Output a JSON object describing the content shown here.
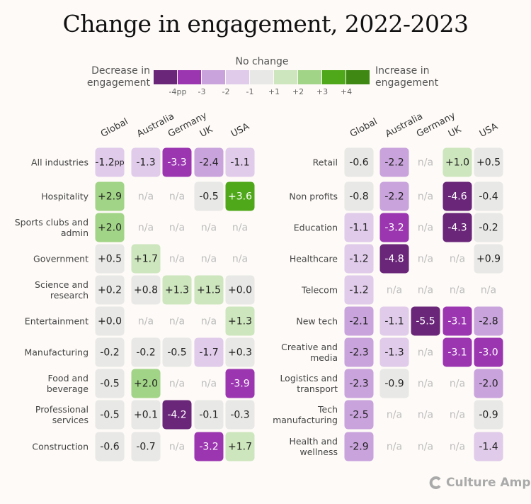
{
  "title": "Change in engagement, 2022-2023",
  "legend": {
    "no_change": "No change",
    "decrease": "Decrease in engagement",
    "increase": "Increase in engagement",
    "ticks": [
      "-4pp",
      "-3",
      "-2",
      "-1",
      "+1",
      "+2",
      "+3",
      "+4"
    ],
    "colors": [
      "#6a2679",
      "#9b36b0",
      "#c9a3dc",
      "#e0cbea",
      "#e8e8e6",
      "#cde6bd",
      "#a1d486",
      "#4fa819",
      "#3e8813"
    ]
  },
  "brand": "Culture Amp",
  "chart_data": [
    {
      "type": "heatmap",
      "unit": "pp",
      "columns": [
        "Global",
        "Australia",
        "Germany",
        "UK",
        "USA"
      ],
      "rows": [
        "All industries",
        "Hospitality",
        "Sports clubs and admin",
        "Government",
        "Science and research",
        "Entertainment",
        "Manufacturing",
        "Food and beverage",
        "Professional services",
        "Construction"
      ],
      "values": [
        [
          -1.2,
          -1.3,
          -3.3,
          -2.4,
          -1.1
        ],
        [
          2.9,
          null,
          null,
          -0.5,
          3.6
        ],
        [
          2.0,
          null,
          null,
          null,
          null
        ],
        [
          0.5,
          1.7,
          null,
          null,
          null
        ],
        [
          0.2,
          0.8,
          1.3,
          1.5,
          0.0
        ],
        [
          0.0,
          null,
          null,
          null,
          1.3
        ],
        [
          -0.2,
          -0.2,
          -0.5,
          -1.7,
          0.3
        ],
        [
          -0.5,
          2.0,
          null,
          null,
          -3.9
        ],
        [
          -0.5,
          0.1,
          -4.2,
          -0.1,
          -0.3
        ],
        [
          -0.6,
          -0.7,
          null,
          -3.2,
          1.7
        ]
      ]
    },
    {
      "type": "heatmap",
      "unit": "pp",
      "columns": [
        "Global",
        "Australia",
        "Germany",
        "UK",
        "USA"
      ],
      "rows": [
        "Retail",
        "Non profits",
        "Education",
        "Healthcare",
        "Telecom",
        "New tech",
        "Creative and media",
        "Logistics and transport",
        "Tech manufacturing",
        "Health and wellness"
      ],
      "values": [
        [
          -0.6,
          -2.2,
          null,
          1.0,
          0.5
        ],
        [
          -0.8,
          -2.2,
          null,
          -4.6,
          -0.4
        ],
        [
          -1.1,
          -3.2,
          null,
          -4.3,
          -0.2
        ],
        [
          -1.2,
          -4.8,
          null,
          null,
          0.9
        ],
        [
          -1.2,
          null,
          null,
          null,
          null
        ],
        [
          -2.1,
          -1.1,
          -5.5,
          -3.1,
          -2.8
        ],
        [
          -2.3,
          -1.3,
          null,
          -3.1,
          -3.0
        ],
        [
          -2.3,
          -0.9,
          null,
          null,
          -2.0
        ],
        [
          -2.5,
          null,
          null,
          null,
          -0.9
        ],
        [
          -2.9,
          null,
          null,
          null,
          -1.4
        ]
      ]
    }
  ],
  "na_label": "n/a"
}
